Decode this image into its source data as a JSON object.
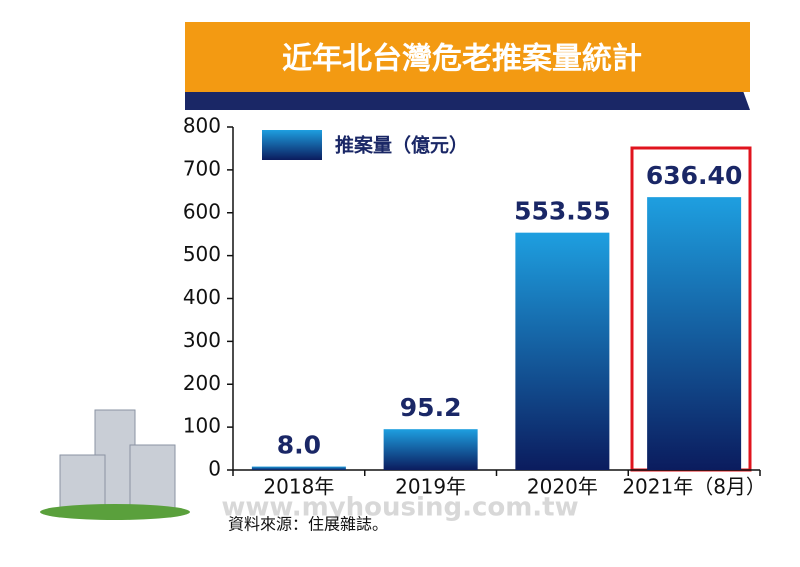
{
  "chart_data": {
    "type": "bar",
    "title": "近年北台灣危老推案量統計",
    "categories": [
      "2018年",
      "2019年",
      "2020年",
      "2021年（8月）"
    ],
    "series": [
      {
        "name": "推案量（億元）",
        "color": "#1e9fe0",
        "values": [
          8,
          95.2,
          553.55,
          636.4
        ],
        "value_labels": [
          "8.0",
          "95.2",
          "553.55",
          "636.40"
        ]
      }
    ],
    "ylim": [
      0,
      800
    ],
    "yticks": [
      0,
      100,
      200,
      300,
      400,
      500,
      600,
      700,
      800
    ],
    "source": "資料來源：住展雜誌。",
    "watermark": "www.myhousing.com.tw"
  }
}
